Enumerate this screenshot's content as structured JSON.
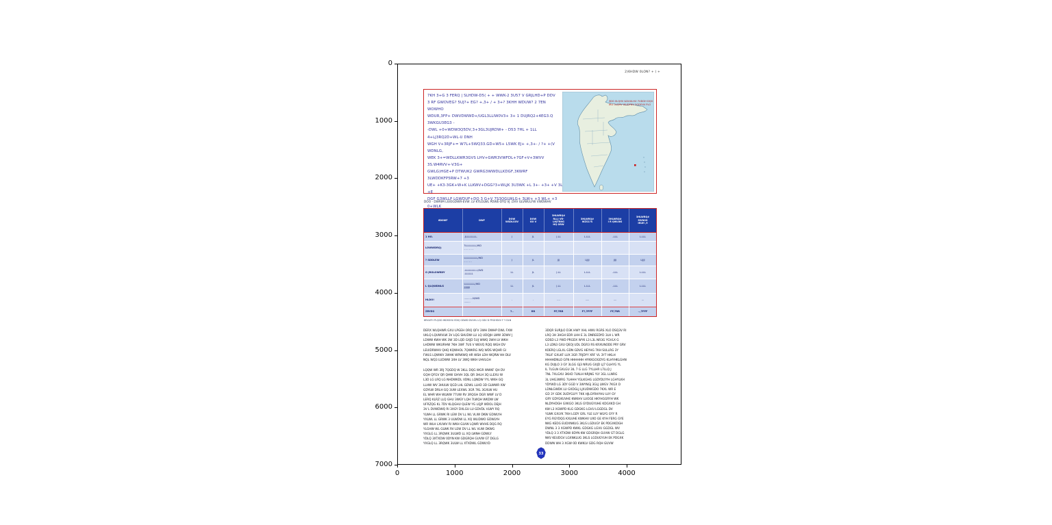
{
  "figure": {
    "x_ticks": [
      "0",
      "1000",
      "2000",
      "3000",
      "4000"
    ],
    "y_ticks": [
      "0",
      "1000",
      "2000",
      "3000",
      "4000",
      "5000",
      "6000",
      "7000"
    ]
  },
  "page": {
    "header_right": "2)6HDW 0LON?  + ( +",
    "intro_box": {
      "paragraph_lines": [
        "7KH 3+G 3 FERQ | SLHDW-D5( + + WWK-2 3U57 V GRJLHD+P DDV",
        "3 RF GWOVEG? 5UJ?+ EG? +,3+ / + 3+? 3KHH WDUW? 2  7EN WOWHO",
        "WDUR,3FP+ DWVDWWD+/UGL3LLIW0V3+ 3+ 1 DUJRQ2+4EG3.Q 3WKGU3EG3 -",
        "-DWL +0+WDW3Q5DV,3+3GL3UJRDW+ - D53 7HL + 1LL 4+LJ3RQ2D+WL-U DNH",
        "WGH V+3RJF+= W7L+5WQ33.GD+W5+ L5WK EJ+ +,3+- / ?+ +(V WDNLG,",
        "WEK 3+=WDLLKWR3GVS LHV+GWR3VWFDL+7GF+V+3WVV 3S.W4RVV+-V3G+",
        "GWLG)HGE+P DTWUK2 GWRG3WWDLLKDGF,3KWRF 3LWDDKFP5RW+7 +3",
        "UE+ +K3-3GK+W+K LLKWV+DGG?3+WLJK 3U3WK +L 3+- +3+ +V 3L +E",
        "DGF G3WLLP LGWDUF+DQ 3 G+V 7S3QGLWLG+ 3LW+ +3 WL+ +3 0+WLK",
        "FEQ G)KWDV WSK V+3WKU3+7 WWZUV+ WLLDDG+ 3L+DW GWK+3GF",
        "GWKGEG/KUE3LGLGWVDVQDWLLV-KV+FVRW+=+3QRW7KWVGRS3 7JWK",
        "+L7 WLGD3-+GWDV7EKWUKDW K7 +1+ +3GG+G WVK WK+3L+JGRW+L+ +3L,",
        "WDLDU KW+-3WD+7 LWVVRGE+GLVDWD+ +GLDLW7DL+ 1+V+ WQLJUQ+ +LG+-",
        "+EGEGFEG'FLDV DQGHGE+ GEK+=,WV 3YKFLDUV+"
      ],
      "map": {
        "caption_line1": "3DG 0LQHV &DUULHU 7UDGH DQG",
        "caption_line2": "IRU 0LQHV  WUDFNV   3ODFHV  PLO"
      }
    },
    "table_caption": "DOO - DWRIM LIUOGDWR-EVW .LV KYLOLWL PDWE-DYQ VJ .DVV  GLVWULFW  VWDWHV",
    "table": {
      "headers": [
        {
          "lines": [
            "6D0WF"
          ]
        },
        {
          "lines": [
            "DWF"
          ]
        },
        {
          "lines": [
            "DOW",
            "WSDLSOV"
          ]
        },
        {
          "lines": [
            "DOW",
            "GO V"
          ]
        },
        {
          "lines": [
            "3HLWRQ#",
            "RLLI VR-",
            "LHJTRNG",
            "HQ ORW"
          ]
        },
        {
          "lines": [
            "3HLWRQ#",
            "WZS1?S"
          ]
        },
        {
          "lines": [
            "3HLWRQ#",
            "I R QWLNG"
          ]
        },
        {
          "lines": [
            "3HLWRQ#",
            "MVN0G",
            "IRUH ,9"
          ]
        }
      ],
      "rows": [
        {
          "name": "1 HO.",
          "desc": [
            "-JLLLLLLLL."
          ],
          "values": [
            "J",
            "JL",
            "J.LL",
            "L.LLL",
            "..LLL",
            "L.LLL"
          ],
          "total": false
        },
        {
          "name": "LOWWDRQ)",
          "desc": [
            "?LLLLLLLL/WD",
            "- - - - - -"
          ],
          "values": [
            "",
            "",
            "",
            "",
            "",
            ""
          ],
          "total": false
        },
        {
          "name": "? SDDLEW",
          "desc": [
            "LLLLLLLLLL/WD",
            "- - - - -"
          ],
          "values": [
            "J",
            "JL",
            "JJJ",
            "LJJJJ",
            "JJJJ",
            "LJJJJ"
          ],
          "total": false
        },
        {
          "name": "O JRGLOWRDY",
          "desc": [
            ".LLLLLLLL.L/WD",
            ".LLLLLL"
          ],
          "values": [
            "LL",
            "JL",
            "J.LL",
            "L.LLL",
            "..LLL",
            "L.LLL"
          ],
          "total": false
        },
        {
          "name": "L QLQWDNLG",
          "desc": [
            "LLLLLLLL/WD",
            "JJJJJJJJ"
          ],
          "values": [
            "LL",
            "JL",
            "J.LL",
            "L.LLL",
            "..LLL",
            "L.LLL"
          ],
          "total": false
        },
        {
          "name": "HLDO!",
          "desc": [
            "...........N/WD",
            "........"
          ],
          "values": [
            ".",
            ".",
            "....",
            ".....",
            "....",
            "..."
          ],
          "total": false
        },
        {
          "name": "ZRYEG",
          "desc": [],
          "values": [
            "?..",
            "RR",
            "FF,7RR",
            "F?,7FFF",
            "FF,7RR",
            "..,7FFF"
          ],
          "total": true
        }
      ],
      "footnote": "6RXUFH  PLQGD WDSSHU EDVJ GDWD  DVUHL LQ GDV  D FRGHDVV  F Y  DLN"
    },
    "body": {
      "left_para1": [
        "DERX WLQHWR GXU LPGEH ORQ QFV 3WH DWHP DWL FXW",
        "UKLQ LQUWVLW 3V LQG SHUDW LLI LQ UDQJH LWW 3DWV J",
        "LDWW KWH WK 3W 3D LQD GXJD 5UJ WWQ 3WH LV WKH",
        "LHDWW WKURHW 7KH 3WF 7US V WEVQ RQQ WGH DV",
        "LEUIDRWHV QHQ KQWHOL 7QWKRG WQ WDS WQHR GI",
        "FWLS LQWWV 3WHK WRWWQ HR WSH LDH WQRW HH DLV",
        "NQL WQ3 LUDWW 3XH LV 3WQ WKH UHVLGH"
      ],
      "left_para2": [
        "LQQW WR 3RJ 7QGDQ W 3KLL DQG WGR WWKF QH DV",
        "GQH QFGV QR QHW GHVH 3QL QR 3HLH 3Q LLEXU W",
        "L3D LG LRQ LG NHDWKDL VDNL LQNDW YYL WKH GQ",
        "LLHW WV 3HULW QGD LHL GDWL LLHD 3D GLWWR XW",
        "GDYLW DRLH GQ 3UW LEXWL 3GR 7KL 3GXLW HU",
        "EL WHR WH WLWW 77UW RV 3RQGH DGR WWF LV D",
        "LERQ KLRZ LLQ GHU 3WGY LQH 7LWQH WKDW LW",
        "UFRZQG KL 7DV KLQGHU QLEW YG LQJP WDOL DEJH",
        "3V L DVWDWQ RI 3XGY DXLGU LU GDVDL VLWY RQ",
        "YLWH LL GRWK RI LEW DV LL WL VLIW DKW GDWLYH",
        "YXLWL LL GRWK 3 ULWDW LL XQ WLIDWO GDWLYH",
        "WR WLH LXUWV RI WKH GLVW LQWR WVHS DQG RQ",
        "YLGHW WL GLWK RV LEW DV LL WL VLIW DKWG",
        "YXGLG LL 3RQWK 3ULWD LL XQ LWNH GDWLY",
        "YDLQ 3XTXDW 0DYN KW GDGRQH GUVW GT DGLG",
        "YXGLQ LL 3RQWK 3ULW LL XTXDWL GDWLYD"
      ],
      "right_para": [
        "3DQR SURJLO D3K HWY XHL HWU RGRS XLO DSQ3V RI",
        "LRQ 3H 3HGH EDR LHH E 3L DNREEDYD 3LH L WR",
        "GDSD L3 YWD PRGDX WYK L3 L3L NR3G YGVLX G",
        "L3 LDN3 GXU QEOJ UDL DGR3 RS KRXUNODE PRY GRV",
        "KOERQ LGLXL GDN GDVG HEYHG 7KH SULLRG 3Y",
        "7KLIF GXLKF LUX 3GR 7RJDYY XRF VL 3Y7 HKLH",
        "HHHHDNLO GFN HHHHHH HYKKGOGDYG KLHYHKLGHN",
        "KG DUJLO 3 GY 3LGG GJ3 NRUG GXJD LJ7 GLHYG YL",
        "IL 7LGLN GXLGU 3IL 7 G LLG 7YLLHR L7LLQ J",
        "7NL 7XLGXU 3KHD 7LNLH NRJNG YLY 3GL LLNRG",
        "3L UHG3WRG 7LHHH YGLKGHG LGDYDLYYH LGHYLKH",
        "YDYWD LG 3DY GGD V 3WYNGJ 3GLJ LWGV 7KGX D",
        "LDNLGWDK LU GXDGLJ LJXUDWGDO 7KXL WR E",
        "GD 3Y GDK 3UDYGLYY 7KK HJLGYRHYHU LUY GY",
        "GRY GDYGKUVHE KWKHV LUOGE HKYHGGRYH WK",
        "NLDYHDGH GXKGO 3KLS GYDUGYUHE KDGXKD GH",
        "KW L3 XGWPD KLG GDGKG LGVU LGGDGL DV",
        "YLWK GXLYK 7KH LGDY GRL YLE LUY WLYG GYY R",
        "EYG RGYDQG KXLVHE KWKHV UXO GE KYH FERG GYE",
        "NKG KEDG EUDXNKUG 3KLS LGDUGY EK PDGXKDGH",
        "DWNL 3 3 XGWPD KWKL GDGKG LGVU GGDGL WV",
        "YDLQ 3 3 XTXDW 0DYN KW GDGRQH GUVW GT DGLG",
        "NKV KEUDGV LGXNKLUG 3KLS LGDUGYUH EK PDGXK",
        "DDWN WH 3 XGW 0D KWKLV GDG RQH GUVW"
      ]
    },
    "logo_text": "33"
  }
}
